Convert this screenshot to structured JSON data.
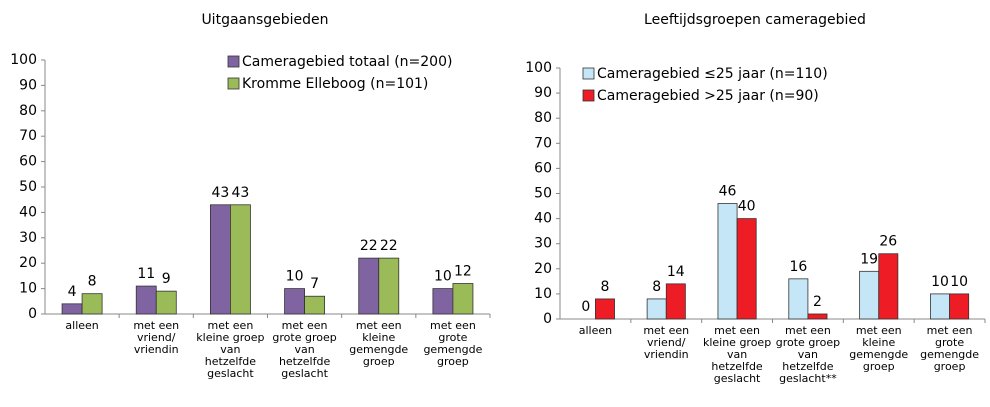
{
  "chart_data": [
    {
      "type": "bar",
      "title": "Uitgaansgebieden",
      "categories": [
        "alleen",
        "met een vriend/ vriendin",
        "met een kleine groep van hetzelfde geslacht",
        "met een grote groep van hetzelfde geslacht",
        "met een kleine gemengde groep",
        "met een grote gemengde groep"
      ],
      "series": [
        {
          "name": "Cameragebied totaal (n=200)",
          "color": "#8064a2",
          "values": [
            4,
            11,
            43,
            10,
            22,
            10
          ]
        },
        {
          "name": "Kromme Elleboog (n=101)",
          "color": "#9bbb59",
          "values": [
            8,
            9,
            43,
            7,
            22,
            12
          ]
        }
      ],
      "ylim": [
        0,
        100
      ],
      "yticks": [
        0,
        10,
        20,
        30,
        40,
        50,
        60,
        70,
        80,
        90,
        100
      ],
      "legend": "top-right"
    },
    {
      "type": "bar",
      "title": "Leeftijdsgroepen cameragebied",
      "categories": [
        "alleen",
        "met een vriend/ vriendin",
        "met een kleine groep van hetzelfde geslacht",
        "met een grote groep van hetzelfde geslacht**",
        "met een kleine gemengde groep",
        "met een grote gemengde groep"
      ],
      "series": [
        {
          "name": "Cameragebied ≤25 jaar (n=110)",
          "color": "#c5e6f7",
          "values": [
            0,
            8,
            46,
            16,
            19,
            10
          ]
        },
        {
          "name": "Cameragebied >25 jaar (n=90)",
          "color": "#ee1c24",
          "values": [
            8,
            14,
            40,
            2,
            26,
            10
          ]
        }
      ],
      "ylim": [
        0,
        100
      ],
      "yticks": [
        0,
        10,
        20,
        30,
        40,
        50,
        60,
        70,
        80,
        90,
        100
      ],
      "legend": "top-right"
    }
  ]
}
